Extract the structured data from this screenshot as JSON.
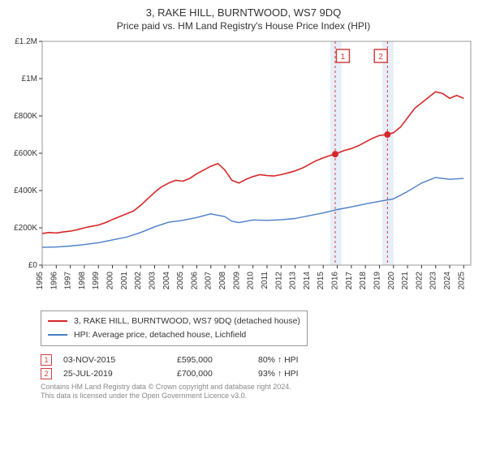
{
  "chart": {
    "type": "line",
    "title": "3, RAKE HILL, BURNTWOOD, WS7 9DQ",
    "subtitle": "Price paid vs. HM Land Registry's House Price Index (HPI)",
    "title_fontsize": 13,
    "subtitle_fontsize": 12,
    "background_color": "#ffffff",
    "plot_border_color": "#999999",
    "ylabel_format": "£",
    "xlim": [
      1995,
      2025.5
    ],
    "ylim": [
      0,
      1200000
    ],
    "yticks": [
      0,
      200000,
      400000,
      600000,
      800000,
      1000000,
      1200000
    ],
    "ytick_labels": [
      "£0",
      "£200K",
      "£400K",
      "£600K",
      "£800K",
      "£1M",
      "£1.2M"
    ],
    "xticks": [
      1995,
      1996,
      1997,
      1998,
      1999,
      2000,
      2001,
      2002,
      2003,
      2004,
      2005,
      2006,
      2007,
      2008,
      2009,
      2010,
      2011,
      2012,
      2013,
      2014,
      2015,
      2016,
      2017,
      2018,
      2019,
      2020,
      2021,
      2022,
      2023,
      2024,
      2025
    ],
    "axis_fontsize": 10,
    "axis_color": "#333333",
    "highlight_bands": [
      {
        "x_start": 2015.5,
        "x_end": 2016.3,
        "color": "#e8eef7"
      },
      {
        "x_start": 2019.2,
        "x_end": 2020.0,
        "color": "#e8eef7"
      }
    ],
    "vertical_dashed": [
      {
        "x": 2015.85,
        "color": "#d04040"
      },
      {
        "x": 2019.57,
        "color": "#d04040"
      }
    ],
    "marker_boxes": [
      {
        "x": 2016.4,
        "label": "1",
        "color": "#d04040"
      },
      {
        "x": 2019.1,
        "label": "2",
        "color": "#d04040"
      }
    ],
    "series": [
      {
        "id": "price_paid",
        "label": "3, RAKE HILL, BURNTWOOD, WS7 9DQ (detached house)",
        "color": "#d62728",
        "line_width": 1.6,
        "data": [
          [
            1995,
            170000
          ],
          [
            1995.5,
            175000
          ],
          [
            1996,
            172000
          ],
          [
            1996.5,
            178000
          ],
          [
            1997,
            182000
          ],
          [
            1997.5,
            190000
          ],
          [
            1998,
            200000
          ],
          [
            1998.5,
            208000
          ],
          [
            1999,
            215000
          ],
          [
            1999.5,
            228000
          ],
          [
            2000,
            245000
          ],
          [
            2000.5,
            260000
          ],
          [
            2001,
            275000
          ],
          [
            2001.5,
            290000
          ],
          [
            2002,
            320000
          ],
          [
            2002.5,
            355000
          ],
          [
            2003,
            390000
          ],
          [
            2003.5,
            420000
          ],
          [
            2004,
            440000
          ],
          [
            2004.5,
            455000
          ],
          [
            2005,
            450000
          ],
          [
            2005.5,
            465000
          ],
          [
            2006,
            490000
          ],
          [
            2006.5,
            510000
          ],
          [
            2007,
            530000
          ],
          [
            2007.5,
            545000
          ],
          [
            2008,
            510000
          ],
          [
            2008.5,
            455000
          ],
          [
            2009,
            440000
          ],
          [
            2009.5,
            460000
          ],
          [
            2010,
            475000
          ],
          [
            2010.5,
            485000
          ],
          [
            2011,
            480000
          ],
          [
            2011.5,
            478000
          ],
          [
            2012,
            485000
          ],
          [
            2012.5,
            495000
          ],
          [
            2013,
            505000
          ],
          [
            2013.5,
            520000
          ],
          [
            2014,
            540000
          ],
          [
            2014.5,
            560000
          ],
          [
            2015,
            575000
          ],
          [
            2015.5,
            588000
          ],
          [
            2015.85,
            595000
          ],
          [
            2016,
            600000
          ],
          [
            2016.5,
            615000
          ],
          [
            2017,
            625000
          ],
          [
            2017.5,
            640000
          ],
          [
            2018,
            660000
          ],
          [
            2018.5,
            680000
          ],
          [
            2019,
            695000
          ],
          [
            2019.57,
            700000
          ],
          [
            2020,
            710000
          ],
          [
            2020.5,
            740000
          ],
          [
            2021,
            790000
          ],
          [
            2021.5,
            840000
          ],
          [
            2022,
            870000
          ],
          [
            2022.5,
            900000
          ],
          [
            2023,
            930000
          ],
          [
            2023.5,
            920000
          ],
          [
            2024,
            895000
          ],
          [
            2024.5,
            910000
          ],
          [
            2025,
            895000
          ]
        ]
      },
      {
        "id": "hpi",
        "label": "HPI: Average price, detached house, Lichfield",
        "color": "#4a7ec8",
        "line_width": 1.4,
        "data": [
          [
            1995,
            95000
          ],
          [
            1996,
            97000
          ],
          [
            1997,
            102000
          ],
          [
            1998,
            110000
          ],
          [
            1999,
            120000
          ],
          [
            2000,
            135000
          ],
          [
            2001,
            150000
          ],
          [
            2002,
            175000
          ],
          [
            2003,
            205000
          ],
          [
            2004,
            230000
          ],
          [
            2005,
            240000
          ],
          [
            2006,
            255000
          ],
          [
            2007,
            275000
          ],
          [
            2008,
            260000
          ],
          [
            2008.5,
            235000
          ],
          [
            2009,
            228000
          ],
          [
            2010,
            242000
          ],
          [
            2011,
            240000
          ],
          [
            2012,
            243000
          ],
          [
            2013,
            250000
          ],
          [
            2014,
            265000
          ],
          [
            2015,
            280000
          ],
          [
            2016,
            298000
          ],
          [
            2017,
            312000
          ],
          [
            2018,
            328000
          ],
          [
            2019,
            342000
          ],
          [
            2020,
            355000
          ],
          [
            2021,
            395000
          ],
          [
            2022,
            440000
          ],
          [
            2023,
            470000
          ],
          [
            2024,
            460000
          ],
          [
            2025,
            465000
          ]
        ]
      }
    ],
    "sale_points": [
      {
        "x": 2015.85,
        "y": 595000,
        "color": "#d62728"
      },
      {
        "x": 2019.57,
        "y": 700000,
        "color": "#d62728"
      }
    ]
  },
  "legend": {
    "items": [
      {
        "label": "3, RAKE HILL, BURNTWOOD, WS7 9DQ (detached house)",
        "color": "#d62728"
      },
      {
        "label": "HPI: Average price, detached house, Lichfield",
        "color": "#4a7ec8"
      }
    ]
  },
  "sales": [
    {
      "marker": "1",
      "marker_color": "#d04040",
      "date": "03-NOV-2015",
      "price": "£595,000",
      "pct": "80% ↑ HPI"
    },
    {
      "marker": "2",
      "marker_color": "#d04040",
      "date": "25-JUL-2019",
      "price": "£700,000",
      "pct": "93% ↑ HPI"
    }
  ],
  "attribution": {
    "line1": "Contains HM Land Registry data © Crown copyright and database right 2024.",
    "line2": "This data is licensed under the Open Government Licence v3.0."
  }
}
